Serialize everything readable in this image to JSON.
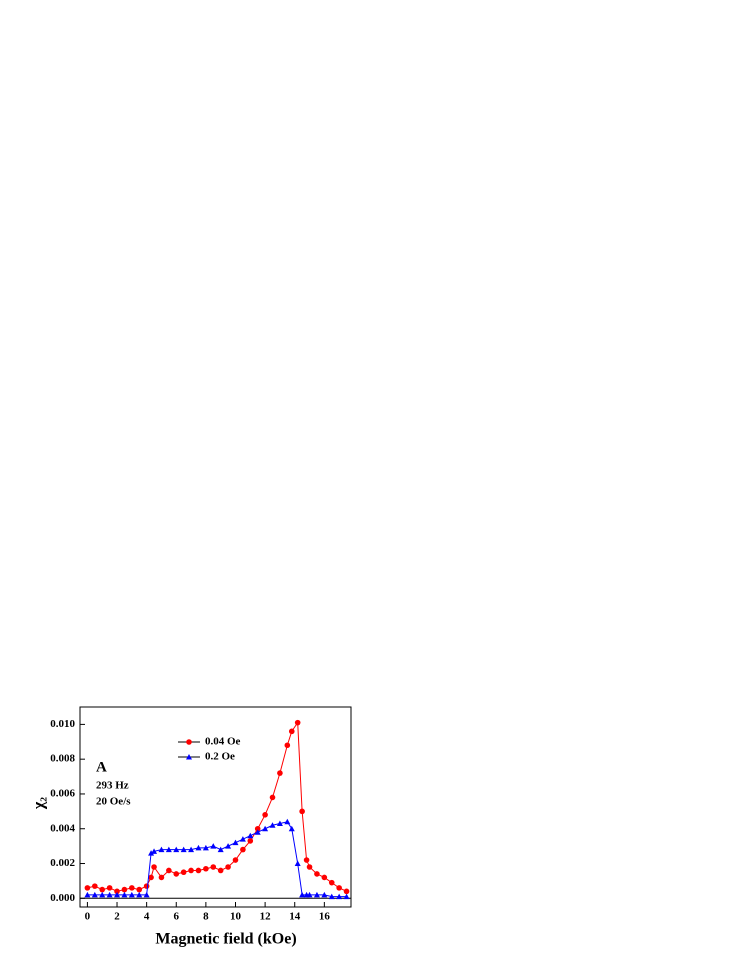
{
  "chart_data": {
    "type": "scatter",
    "xlabel": "Magnetic field (kOe)",
    "ylabel": "χ₂",
    "annotations": [
      "A",
      "293 Hz",
      "20 Oe/s"
    ],
    "x": [
      0,
      0.5,
      1,
      1.5,
      2,
      2.5,
      3,
      3.5,
      4,
      4.3,
      4.5,
      5,
      5.5,
      6,
      6.5,
      7,
      7.5,
      8,
      8.5,
      9,
      9.5,
      10,
      10.5,
      11,
      11.5,
      12,
      12.5,
      13,
      13.5,
      13.8,
      14.2,
      14.5,
      14.8,
      15,
      15.5,
      16,
      16.5,
      17,
      17.5
    ],
    "series": [
      {
        "name": "0.04 Oe",
        "color": "#ff0000",
        "marker": "circle",
        "values": [
          0.0006,
          0.0007,
          0.0005,
          0.0006,
          0.0004,
          0.0005,
          0.0006,
          0.0005,
          0.0007,
          0.0012,
          0.0018,
          0.0012,
          0.0016,
          0.0014,
          0.0015,
          0.0016,
          0.0016,
          0.0017,
          0.0018,
          0.0016,
          0.0018,
          0.0022,
          0.0028,
          0.0033,
          0.004,
          0.0048,
          0.0058,
          0.0072,
          0.0088,
          0.0096,
          0.0101,
          0.005,
          0.0022,
          0.0018,
          0.0014,
          0.0012,
          0.0009,
          0.0006,
          0.0004
        ]
      },
      {
        "name": "0.2 Oe",
        "color": "#0000ff",
        "marker": "triangle",
        "values": [
          0.0002,
          0.0002,
          0.0002,
          0.0002,
          0.0002,
          0.0002,
          0.0002,
          0.0002,
          0.0002,
          0.0026,
          0.0027,
          0.0028,
          0.0028,
          0.0028,
          0.0028,
          0.0028,
          0.0029,
          0.0029,
          0.003,
          0.0028,
          0.003,
          0.0032,
          0.0034,
          0.0036,
          0.0038,
          0.004,
          0.0042,
          0.0043,
          0.0044,
          0.004,
          0.002,
          0.0002,
          0.0002,
          0.0002,
          0.0002,
          0.0002,
          0.0001,
          0.0001,
          0.0001
        ]
      }
    ],
    "xlim": [
      -0.5,
      17.8
    ],
    "ylim": [
      -0.0005,
      0.011
    ],
    "xticks": [
      0,
      2,
      4,
      6,
      8,
      10,
      12,
      14,
      16
    ],
    "yticks": [
      {
        "value": 0,
        "label": "0.000"
      },
      {
        "value": 0.002,
        "label": "0.002"
      },
      {
        "value": 0.004,
        "label": "0.004"
      },
      {
        "value": 0.006,
        "label": "0.006"
      },
      {
        "value": 0.008,
        "label": "0.008"
      },
      {
        "value": 0.01,
        "label": "0.010"
      }
    ]
  }
}
